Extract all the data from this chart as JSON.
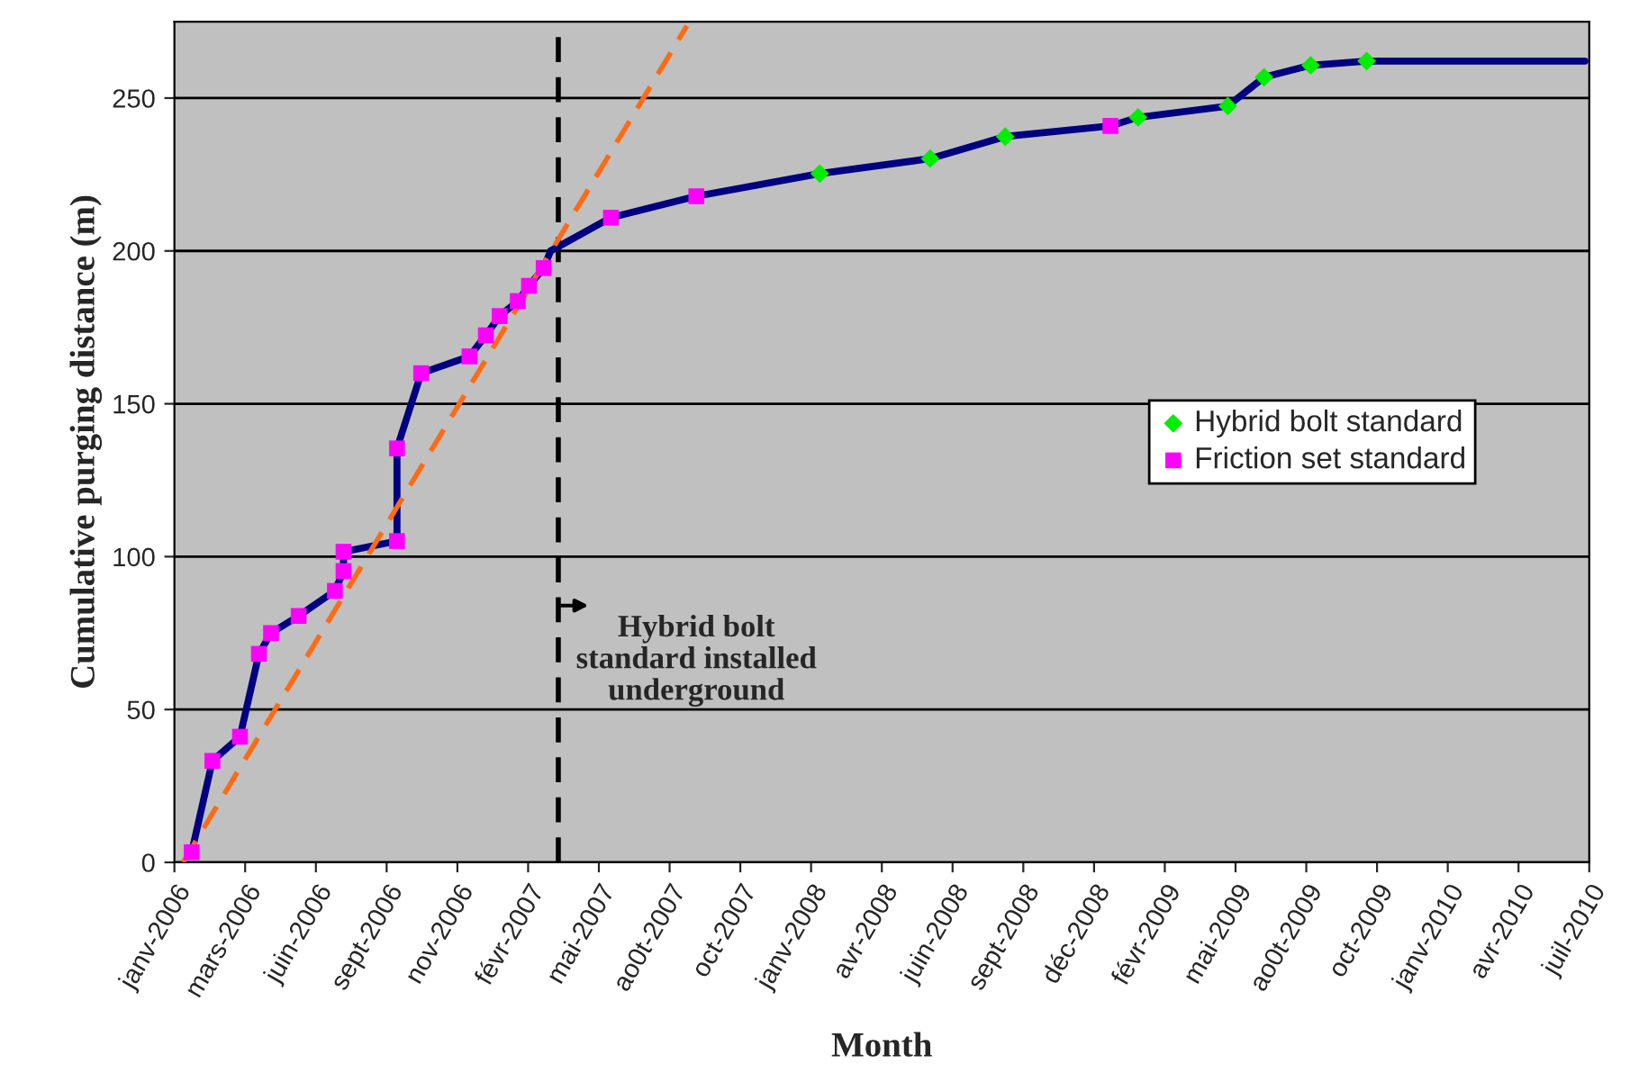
{
  "chart_data": {
    "type": "line",
    "xlabel": "Month",
    "ylabel": "Cumulative purging distance (m)",
    "xlim": [
      "2006-01-04",
      "2010-07-02"
    ],
    "ylim": [
      0,
      275
    ],
    "yticks": [
      0,
      50,
      100,
      150,
      200,
      250
    ],
    "xticks": [
      {
        "value": "2006-01-04",
        "label": "janv-2006"
      },
      {
        "value": "2006-03-27",
        "label": "mars-2006"
      },
      {
        "value": "2006-06-17",
        "label": "juin-2006"
      },
      {
        "value": "2006-09-07",
        "label": "sept-2006"
      },
      {
        "value": "2006-11-28",
        "label": "nov-2006"
      },
      {
        "value": "2007-02-18",
        "label": "févr-2007"
      },
      {
        "value": "2007-05-11",
        "label": "mai-2007"
      },
      {
        "value": "2007-08-01",
        "label": "ao0t-2007"
      },
      {
        "value": "2007-10-22",
        "label": "oct-2007"
      },
      {
        "value": "2008-01-12",
        "label": "janv-2008"
      },
      {
        "value": "2008-04-03",
        "label": "avr-2008"
      },
      {
        "value": "2008-06-24",
        "label": "juin-2008"
      },
      {
        "value": "2008-09-14",
        "label": "sept-2008"
      },
      {
        "value": "2008-12-05",
        "label": "déc-2008"
      },
      {
        "value": "2009-02-25",
        "label": "févr-2009"
      },
      {
        "value": "2009-05-18",
        "label": "mai-2009"
      },
      {
        "value": "2009-08-08",
        "label": "ao0t-2009"
      },
      {
        "value": "2009-10-29",
        "label": "oct-2009"
      },
      {
        "value": "2010-01-19",
        "label": "janv-2010"
      },
      {
        "value": "2010-04-11",
        "label": "avr-2010"
      },
      {
        "value": "2010-07-02",
        "label": "juil-2010"
      }
    ],
    "grid": "y",
    "legend": "right",
    "series": [
      {
        "color": "#000080",
        "marker": "none",
        "line_style": "solid",
        "x": [
          "2006-01-24",
          "2006-02-17",
          "2006-03-21",
          "2006-04-12",
          "2006-04-26",
          "2006-05-28",
          "2006-07-09",
          "2006-07-19",
          "2006-07-19",
          "2006-09-19",
          "2006-09-19",
          "2006-10-17",
          "2006-12-12",
          "2006-12-31",
          "2007-01-16",
          "2007-02-06",
          "2007-02-19",
          "2007-03-08",
          "2007-03-16",
          "2007-05-25",
          "2007-09-01",
          "2008-01-22",
          "2008-05-29",
          "2008-08-24",
          "2008-12-24",
          "2009-01-25",
          "2009-05-09",
          "2009-06-20",
          "2009-08-13",
          "2009-10-17",
          "2010-06-27"
        ],
        "values": [
          3.3,
          33.2,
          41.1,
          68.2,
          75,
          80.6,
          88.8,
          95.3,
          101.6,
          105.1,
          135.4,
          160,
          165.5,
          172.4,
          178.7,
          183.6,
          188.6,
          194.4,
          200,
          210.9,
          217.9,
          225.3,
          230.2,
          237.4,
          240.9,
          243.7,
          247.4,
          256.8,
          260.7,
          262.1,
          262.1
        ]
      },
      {
        "type": "scatter",
        "name": "Hybrid bolt standard",
        "color": "#00ee00",
        "marker": "diamond",
        "x": [
          "2008-01-22",
          "2008-05-29",
          "2008-08-24",
          "2009-01-25",
          "2009-05-09",
          "2009-06-20",
          "2009-08-13",
          "2009-10-17"
        ],
        "values": [
          225.3,
          230.2,
          237.4,
          243.7,
          247.4,
          256.8,
          260.7,
          262.1
        ]
      },
      {
        "type": "scatter",
        "name": "Friction set standard",
        "color": "#ff00ff",
        "marker": "square",
        "x": [
          "2006-01-24",
          "2006-02-17",
          "2006-03-21",
          "2006-04-12",
          "2006-04-26",
          "2006-05-28",
          "2006-07-09",
          "2006-07-19",
          "2006-07-19",
          "2006-09-19",
          "2006-09-19",
          "2006-10-17",
          "2006-12-12",
          "2006-12-31",
          "2007-01-16",
          "2007-02-06",
          "2007-02-19",
          "2007-03-08",
          "2007-05-25",
          "2007-09-01",
          "2008-12-24"
        ],
        "values": [
          3.3,
          33.2,
          41.1,
          68.2,
          75,
          80.6,
          88.8,
          95.3,
          101.6,
          105.1,
          135.4,
          160,
          165.5,
          172.4,
          178.7,
          183.6,
          188.6,
          194.4,
          210.9,
          217.9,
          240.9
        ]
      },
      {
        "type": "line",
        "color": "#ff6a13",
        "marker": "none",
        "line_style": "dashed",
        "x": [
          "2006-01-14",
          "2007-08-21"
        ],
        "values": [
          0,
          273.6
        ]
      }
    ],
    "ref_lines": [
      {
        "axis": "x",
        "value": "2007-03-25",
        "color": "#000000",
        "line_style": "dashed"
      }
    ],
    "annotations": [
      {
        "text": "Hybrid bolt\nstandard installed\nunderground",
        "x": "2007-03-25",
        "y": 84
      }
    ]
  }
}
